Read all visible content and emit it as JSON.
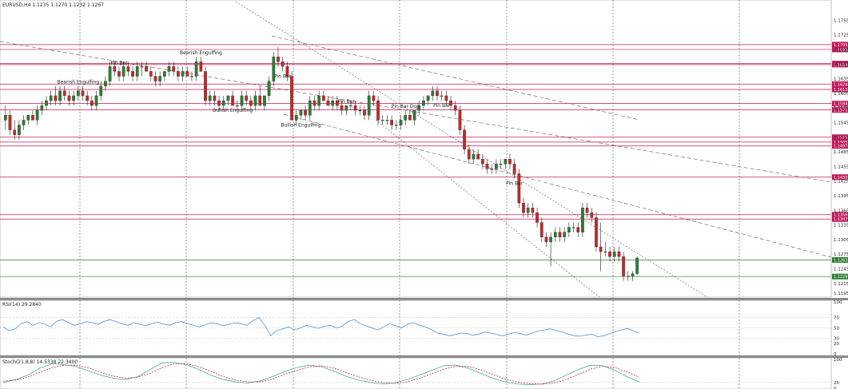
{
  "window": {
    "header": "EURUSD,H4  1.1235 1.1270 1.1232 1.1267",
    "rsi_header": "RSI(14) 29.2840",
    "stoch_header": "Stoch(21,8,8) 14.5338 22.3400"
  },
  "chart_data": {
    "type": "candlestick",
    "symbol": "EURUSD",
    "timeframe": "H4",
    "last_bar": {
      "open": 1.1235,
      "high": 1.127,
      "low": 1.1232,
      "close": 1.1267
    },
    "price_ticks": [
      "1.1755",
      "1.1725",
      "1.1695",
      "1.1665",
      "1.1635",
      "1.1605",
      "1.1575",
      "1.1545",
      "1.1515",
      "1.1485",
      "1.1455",
      "1.1425",
      "1.1395",
      "1.1365",
      "1.1335",
      "1.1305",
      "1.1275",
      "1.1245",
      "1.1215",
      "1.1195"
    ],
    "ylim": [
      1.119,
      1.179
    ],
    "candles": [
      [
        1.155,
        1.158,
        1.153,
        1.156
      ],
      [
        1.156,
        1.157,
        1.152,
        1.153
      ],
      [
        1.153,
        1.155,
        1.151,
        1.152
      ],
      [
        1.152,
        1.155,
        1.151,
        1.154
      ],
      [
        1.154,
        1.156,
        1.153,
        1.155
      ],
      [
        1.155,
        1.156,
        1.154,
        1.156
      ],
      [
        1.156,
        1.157,
        1.155,
        1.155
      ],
      [
        1.155,
        1.158,
        1.154,
        1.157
      ],
      [
        1.157,
        1.159,
        1.156,
        1.158
      ],
      [
        1.158,
        1.16,
        1.157,
        1.159
      ],
      [
        1.159,
        1.161,
        1.158,
        1.16
      ],
      [
        1.16,
        1.162,
        1.158,
        1.159
      ],
      [
        1.159,
        1.162,
        1.158,
        1.161
      ],
      [
        1.161,
        1.162,
        1.159,
        1.16
      ],
      [
        1.16,
        1.161,
        1.158,
        1.159
      ],
      [
        1.159,
        1.161,
        1.158,
        1.16
      ],
      [
        1.16,
        1.162,
        1.159,
        1.161
      ],
      [
        1.161,
        1.162,
        1.159,
        1.16
      ],
      [
        1.16,
        1.161,
        1.158,
        1.159
      ],
      [
        1.159,
        1.16,
        1.157,
        1.158
      ],
      [
        1.158,
        1.161,
        1.157,
        1.16
      ],
      [
        1.16,
        1.163,
        1.159,
        1.162
      ],
      [
        1.162,
        1.164,
        1.161,
        1.163
      ],
      [
        1.163,
        1.167,
        1.162,
        1.166
      ],
      [
        1.166,
        1.167,
        1.164,
        1.165
      ],
      [
        1.165,
        1.166,
        1.163,
        1.164
      ],
      [
        1.164,
        1.167,
        1.163,
        1.166
      ],
      [
        1.166,
        1.167,
        1.164,
        1.165
      ],
      [
        1.165,
        1.166,
        1.163,
        1.164
      ],
      [
        1.164,
        1.167,
        1.163,
        1.166
      ],
      [
        1.166,
        1.167,
        1.164,
        1.166
      ],
      [
        1.166,
        1.167,
        1.165,
        1.165
      ],
      [
        1.165,
        1.166,
        1.163,
        1.164
      ],
      [
        1.164,
        1.165,
        1.162,
        1.163
      ],
      [
        1.163,
        1.165,
        1.162,
        1.164
      ],
      [
        1.164,
        1.165,
        1.163,
        1.165
      ],
      [
        1.165,
        1.167,
        1.164,
        1.166
      ],
      [
        1.166,
        1.167,
        1.164,
        1.165
      ],
      [
        1.165,
        1.166,
        1.163,
        1.164
      ],
      [
        1.164,
        1.166,
        1.163,
        1.165
      ],
      [
        1.165,
        1.166,
        1.164,
        1.164
      ],
      [
        1.164,
        1.165,
        1.163,
        1.164
      ],
      [
        1.164,
        1.168,
        1.163,
        1.167
      ],
      [
        1.167,
        1.168,
        1.165,
        1.165
      ],
      [
        1.165,
        1.166,
        1.158,
        1.159
      ],
      [
        1.159,
        1.161,
        1.158,
        1.16
      ],
      [
        1.16,
        1.161,
        1.158,
        1.159
      ],
      [
        1.159,
        1.16,
        1.157,
        1.158
      ],
      [
        1.158,
        1.16,
        1.157,
        1.159
      ],
      [
        1.159,
        1.16,
        1.158,
        1.16
      ],
      [
        1.16,
        1.161,
        1.158,
        1.158
      ],
      [
        1.158,
        1.159,
        1.157,
        1.158
      ],
      [
        1.158,
        1.161,
        1.157,
        1.16
      ],
      [
        1.16,
        1.161,
        1.158,
        1.159
      ],
      [
        1.159,
        1.16,
        1.157,
        1.158
      ],
      [
        1.158,
        1.161,
        1.157,
        1.16
      ],
      [
        1.16,
        1.162,
        1.158,
        1.158
      ],
      [
        1.158,
        1.16,
        1.157,
        1.16
      ],
      [
        1.16,
        1.164,
        1.159,
        1.163
      ],
      [
        1.163,
        1.169,
        1.162,
        1.168
      ],
      [
        1.168,
        1.17,
        1.166,
        1.167
      ],
      [
        1.167,
        1.168,
        1.165,
        1.166
      ],
      [
        1.166,
        1.167,
        1.163,
        1.164
      ],
      [
        1.164,
        1.165,
        1.155,
        1.155
      ],
      [
        1.155,
        1.157,
        1.154,
        1.156
      ],
      [
        1.156,
        1.157,
        1.155,
        1.157
      ],
      [
        1.157,
        1.158,
        1.155,
        1.156
      ],
      [
        1.156,
        1.16,
        1.155,
        1.159
      ],
      [
        1.159,
        1.16,
        1.157,
        1.158
      ],
      [
        1.158,
        1.161,
        1.157,
        1.16
      ],
      [
        1.16,
        1.161,
        1.159,
        1.159
      ],
      [
        1.159,
        1.16,
        1.158,
        1.158
      ],
      [
        1.158,
        1.16,
        1.157,
        1.159
      ],
      [
        1.159,
        1.16,
        1.157,
        1.158
      ],
      [
        1.158,
        1.159,
        1.156,
        1.157
      ],
      [
        1.157,
        1.158,
        1.156,
        1.158
      ],
      [
        1.158,
        1.159,
        1.157,
        1.158
      ],
      [
        1.158,
        1.159,
        1.156,
        1.157
      ],
      [
        1.157,
        1.158,
        1.156,
        1.157
      ],
      [
        1.157,
        1.158,
        1.155,
        1.156
      ],
      [
        1.156,
        1.161,
        1.155,
        1.16
      ],
      [
        1.16,
        1.161,
        1.158,
        1.159
      ],
      [
        1.159,
        1.16,
        1.154,
        1.155
      ],
      [
        1.155,
        1.156,
        1.154,
        1.155
      ],
      [
        1.155,
        1.156,
        1.154,
        1.155
      ],
      [
        1.155,
        1.156,
        1.153,
        1.154
      ],
      [
        1.154,
        1.155,
        1.153,
        1.154
      ],
      [
        1.154,
        1.156,
        1.153,
        1.155
      ],
      [
        1.155,
        1.157,
        1.154,
        1.156
      ],
      [
        1.156,
        1.157,
        1.155,
        1.155
      ],
      [
        1.155,
        1.157,
        1.154,
        1.157
      ],
      [
        1.157,
        1.159,
        1.156,
        1.158
      ],
      [
        1.158,
        1.16,
        1.157,
        1.159
      ],
      [
        1.159,
        1.16,
        1.158,
        1.16
      ],
      [
        1.16,
        1.162,
        1.159,
        1.161
      ],
      [
        1.161,
        1.162,
        1.159,
        1.16
      ],
      [
        1.16,
        1.161,
        1.159,
        1.16
      ],
      [
        1.16,
        1.161,
        1.158,
        1.159
      ],
      [
        1.159,
        1.16,
        1.157,
        1.158
      ],
      [
        1.158,
        1.159,
        1.156,
        1.157
      ],
      [
        1.157,
        1.158,
        1.152,
        1.153
      ],
      [
        1.153,
        1.154,
        1.148,
        1.149
      ],
      [
        1.149,
        1.15,
        1.146,
        1.147
      ],
      [
        1.147,
        1.149,
        1.146,
        1.148
      ],
      [
        1.148,
        1.149,
        1.147,
        1.147
      ],
      [
        1.147,
        1.148,
        1.145,
        1.146
      ],
      [
        1.146,
        1.147,
        1.144,
        1.145
      ],
      [
        1.145,
        1.146,
        1.144,
        1.145
      ],
      [
        1.145,
        1.147,
        1.144,
        1.146
      ],
      [
        1.146,
        1.147,
        1.145,
        1.146
      ],
      [
        1.146,
        1.147,
        1.145,
        1.147
      ],
      [
        1.147,
        1.148,
        1.145,
        1.146
      ],
      [
        1.146,
        1.147,
        1.143,
        1.144
      ],
      [
        1.144,
        1.145,
        1.137,
        1.138
      ],
      [
        1.138,
        1.139,
        1.135,
        1.136
      ],
      [
        1.136,
        1.138,
        1.135,
        1.137
      ],
      [
        1.137,
        1.138,
        1.135,
        1.136
      ],
      [
        1.136,
        1.137,
        1.133,
        1.134
      ],
      [
        1.134,
        1.135,
        1.13,
        1.131
      ],
      [
        1.131,
        1.132,
        1.129,
        1.13
      ],
      [
        1.13,
        1.132,
        1.125,
        1.131
      ],
      [
        1.131,
        1.133,
        1.13,
        1.132
      ],
      [
        1.132,
        1.133,
        1.13,
        1.131
      ],
      [
        1.131,
        1.133,
        1.13,
        1.132
      ],
      [
        1.132,
        1.134,
        1.131,
        1.133
      ],
      [
        1.133,
        1.134,
        1.132,
        1.133
      ],
      [
        1.133,
        1.134,
        1.131,
        1.132
      ],
      [
        1.132,
        1.138,
        1.131,
        1.137
      ],
      [
        1.137,
        1.138,
        1.135,
        1.136
      ],
      [
        1.136,
        1.137,
        1.134,
        1.135
      ],
      [
        1.135,
        1.136,
        1.128,
        1.129
      ],
      [
        1.129,
        1.134,
        1.124,
        1.128
      ],
      [
        1.128,
        1.13,
        1.127,
        1.128
      ],
      [
        1.128,
        1.129,
        1.126,
        1.127
      ],
      [
        1.127,
        1.129,
        1.126,
        1.128
      ],
      [
        1.128,
        1.129,
        1.126,
        1.127
      ],
      [
        1.127,
        1.128,
        1.122,
        1.123
      ],
      [
        1.123,
        1.124,
        1.122,
        1.123
      ],
      [
        1.123,
        1.124,
        1.122,
        1.1235
      ],
      [
        1.1235,
        1.127,
        1.1232,
        1.1267
      ]
    ],
    "candle_colors": {
      "up": "#2e7d32",
      "down": "#c62828"
    },
    "resistance_levels": [
      1.1705,
      1.1695,
      1.1666,
      1.1664,
      1.1624,
      1.1613,
      1.1584,
      1.1571,
      1.1515,
      1.1505,
      1.1497,
      1.1433,
      1.1356,
      1.1347
    ],
    "support_levels": [
      1.1263,
      1.1229
    ],
    "level_colors": {
      "resistance": "#c2185b",
      "support": "#2e7d32"
    },
    "resistance_labels": [
      "1.1705",
      "1.1695",
      "1.1666",
      "1.1664",
      "1.1624",
      "1.1613",
      "1.1584",
      "1.1571",
      "1.1515",
      "1.1505",
      "1.1497",
      "1.1433",
      "1.1356",
      "1.1347"
    ],
    "support_labels": [
      "1.1263",
      "1.1229"
    ],
    "annotations": [
      "Bearish Engulfing",
      "Pin Bar",
      "Bearish Engulfing",
      "Bullish Engulfing",
      "Pin Bar",
      "Bullish Engulfing",
      "Pin Bar",
      "Pin Bar Doji",
      "Pin Bar",
      "Pin Bar"
    ],
    "rsi": {
      "ticks": [
        "100",
        "70",
        "50",
        "30",
        "20",
        "0"
      ],
      "values": [
        52,
        45,
        48,
        58,
        62,
        55,
        60,
        57,
        52,
        63,
        66,
        60,
        55,
        58,
        62,
        60,
        57,
        63,
        66,
        62,
        58,
        55,
        60,
        57,
        54,
        58,
        61,
        57,
        55,
        60,
        62,
        58,
        55,
        52,
        56,
        60,
        58,
        54,
        57,
        60,
        58,
        55,
        64,
        70,
        55,
        35,
        45,
        48,
        52,
        46,
        50,
        55,
        52,
        49,
        53,
        55,
        50,
        53,
        62,
        66,
        58,
        54,
        50,
        46,
        52,
        58,
        54,
        50,
        57,
        60,
        55,
        52,
        47,
        40,
        38,
        35,
        37,
        40,
        39,
        36,
        38,
        42,
        40,
        37,
        35,
        38,
        41,
        39,
        36,
        40,
        44,
        46,
        48,
        45,
        42,
        38,
        35,
        34,
        36,
        38,
        33,
        35,
        39,
        43,
        46,
        49,
        44,
        40
      ],
      "color": "#4a90d9"
    },
    "stoch": {
      "ticks": [
        "100",
        "20",
        "0"
      ],
      "k": [
        20,
        30,
        45,
        70,
        85,
        82,
        75,
        60,
        45,
        35,
        30,
        40,
        65,
        88,
        90,
        82,
        65,
        45,
        30,
        22,
        18,
        25,
        40,
        58,
        72,
        80,
        75,
        60,
        42,
        28,
        20,
        15,
        18,
        30,
        45,
        62,
        78,
        80,
        70,
        52,
        35,
        22,
        15,
        12,
        15,
        25,
        45,
        65,
        80,
        78,
        62,
        40,
        22
      ],
      "d": [
        25,
        28,
        38,
        55,
        72,
        80,
        80,
        70,
        55,
        42,
        35,
        38,
        52,
        72,
        85,
        85,
        75,
        58,
        40,
        28,
        22,
        22,
        32,
        48,
        62,
        74,
        78,
        70,
        55,
        40,
        28,
        20,
        17,
        22,
        34,
        50,
        66,
        76,
        76,
        64,
        48,
        32,
        22,
        16,
        14,
        18,
        30,
        48,
        66,
        76,
        72,
        56,
        38
      ],
      "k_color": "#4aa8a0",
      "d_color": "#c62828"
    }
  }
}
